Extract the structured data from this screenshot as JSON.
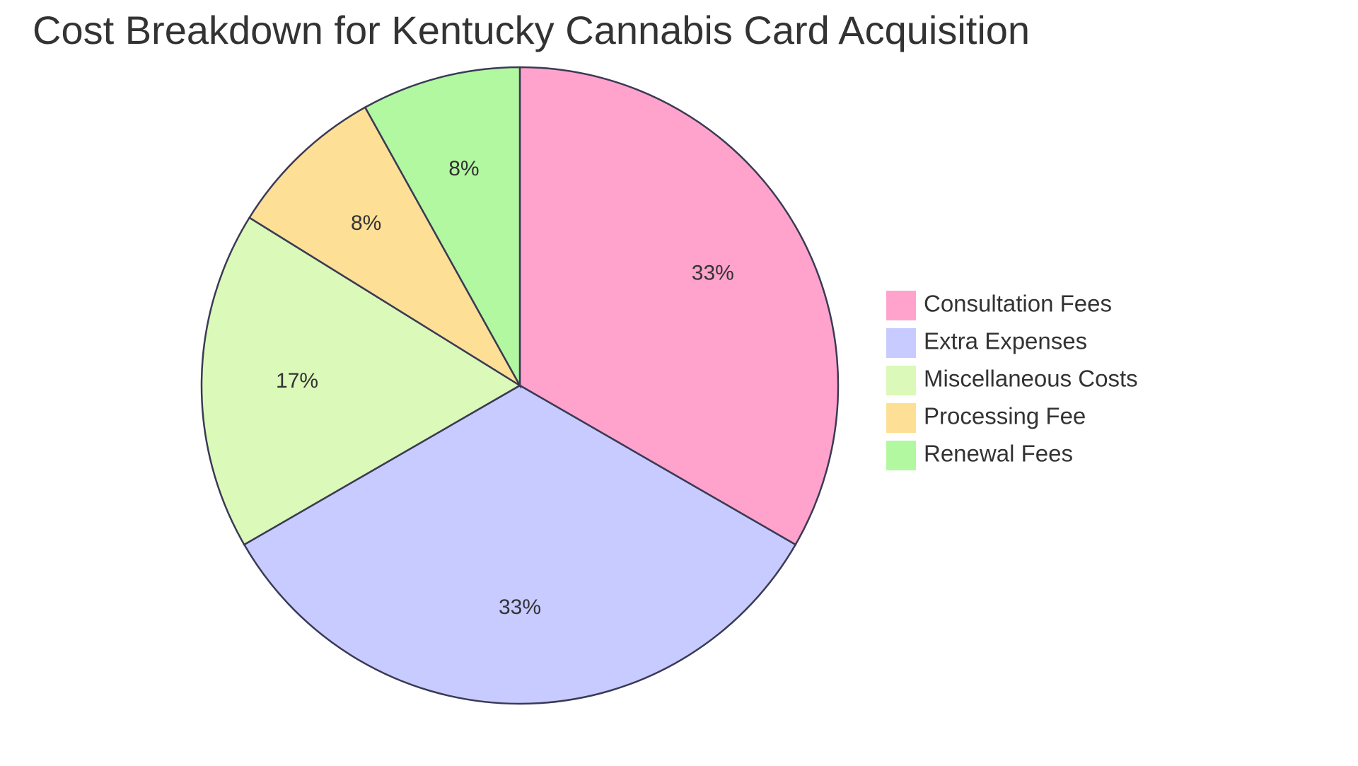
{
  "chart_data": {
    "type": "pie",
    "title": "Cost Breakdown for Kentucky Cannabis Card Acquisition",
    "slices": [
      {
        "label": "Consultation Fees",
        "value": 33,
        "display": "33%",
        "color": "#ffa3cc"
      },
      {
        "label": "Extra Expenses",
        "value": 33,
        "display": "33%",
        "color": "#c8cbff"
      },
      {
        "label": "Miscellaneous Costs",
        "value": 17,
        "display": "17%",
        "color": "#dbf9b8"
      },
      {
        "label": "Processing Fee",
        "value": 8,
        "display": "8%",
        "color": "#fedf96"
      },
      {
        "label": "Renewal Fees",
        "value": 8,
        "display": "8%",
        "color": "#b2f8a0"
      }
    ],
    "legend_position": "right",
    "stroke_color": "#3a3a55"
  }
}
